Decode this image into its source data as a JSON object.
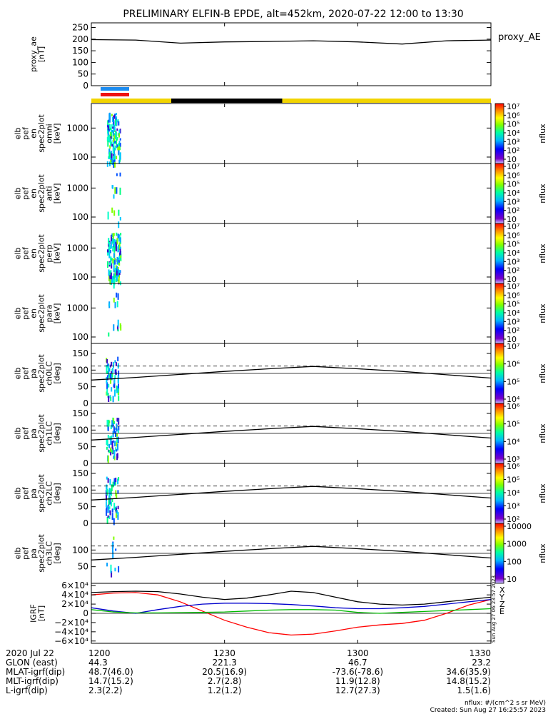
{
  "title": "PRELIMINARY ELFIN-B EPDE, alt=452km, 2020-07-22 12:00 to 13:30",
  "colors": {
    "day": "#f2d400",
    "night": "#000000",
    "bar_blue": "#1c8cf0",
    "bar_red": "#ee1111",
    "igrf_x": "#ff0000",
    "igrf_y": "#0000cc",
    "igrf_z": "#000000",
    "igrf_e": "#00bb00"
  },
  "chart_data": [
    {
      "id": "proxy_ae",
      "type": "line",
      "ylabel": "proxy_ae\n[nT]",
      "yticks": [
        0,
        50,
        100,
        150,
        200,
        250
      ],
      "ylim": [
        0,
        270
      ],
      "legend": "proxy_AE",
      "x_min": [
        0,
        10,
        20,
        30,
        40,
        50,
        60,
        70,
        80,
        90
      ],
      "y": [
        198,
        196,
        183,
        188,
        190,
        193,
        188,
        179,
        193,
        196
      ]
    },
    {
      "id": "en_omni",
      "type": "heatmap",
      "ylabel": "elb\npef\nen\nspec2plot\nomni\n[keV]",
      "yscale": "log",
      "ylim": [
        60,
        7000
      ],
      "yticks": [
        100,
        1000
      ],
      "colorbar": {
        "label": "nflux",
        "ticks": [
          "10",
          "10²",
          "10³",
          "10⁴",
          "10⁵",
          "10⁶",
          "10⁷"
        ]
      }
    },
    {
      "id": "en_anti",
      "type": "heatmap",
      "ylabel": "elb\npef\nen\nspec2plot\nanti\n[keV]",
      "yscale": "log",
      "ylim": [
        60,
        7000
      ],
      "yticks": [
        100,
        1000
      ],
      "colorbar": {
        "label": "nflux",
        "ticks": [
          "10",
          "10²",
          "10³",
          "10⁴",
          "10⁵",
          "10⁶",
          "10⁷"
        ]
      }
    },
    {
      "id": "en_perp",
      "type": "heatmap",
      "ylabel": "elb\npef\nen\nspec2plot\nperp\n[keV]",
      "yscale": "log",
      "ylim": [
        60,
        7000
      ],
      "yticks": [
        100,
        1000
      ],
      "colorbar": {
        "label": "nflux",
        "ticks": [
          "10",
          "10²",
          "10³",
          "10⁴",
          "10⁵",
          "10⁶",
          "10⁷"
        ]
      }
    },
    {
      "id": "en_para",
      "type": "heatmap",
      "ylabel": "elb\npef\nen\nspec2plot\npara\n[keV]",
      "yscale": "log",
      "ylim": [
        60,
        7000
      ],
      "yticks": [
        100,
        1000
      ],
      "colorbar": {
        "label": "nflux",
        "ticks": [
          "10",
          "10²",
          "10³",
          "10⁴",
          "10⁵",
          "10⁶",
          "10⁷"
        ]
      }
    },
    {
      "id": "pa_ch0",
      "type": "heatmap",
      "ylabel": "elb\npef\npa\nspec2plot\nch0LC\n[deg]",
      "ylim": [
        0,
        180
      ],
      "yticks": [
        0,
        50,
        100,
        150
      ],
      "colorbar": {
        "label": "nflux",
        "ticks": [
          "10⁴",
          "10⁵",
          "10⁶",
          "10⁷"
        ]
      }
    },
    {
      "id": "pa_ch1",
      "type": "heatmap",
      "ylabel": "elb\npef\npa\nspec2plot\nch1LC\n[deg]",
      "ylim": [
        0,
        180
      ],
      "yticks": [
        0,
        50,
        100,
        150
      ],
      "colorbar": {
        "label": "nflux",
        "ticks": [
          "10³",
          "10⁴",
          "10⁵",
          "10⁶"
        ]
      }
    },
    {
      "id": "pa_ch2",
      "type": "heatmap",
      "ylabel": "elb\npef\npa\nspec2plot\nch2LC\n[deg]",
      "ylim": [
        0,
        180
      ],
      "yticks": [
        0,
        50,
        100,
        150
      ],
      "colorbar": {
        "label": "nflux",
        "ticks": [
          "10²",
          "10³",
          "10⁴",
          "10⁵",
          "10⁶"
        ]
      }
    },
    {
      "id": "pa_ch3",
      "type": "heatmap",
      "ylabel": "elb\npef\npa\nspec2plot\nch3LC\n[deg]",
      "ylim": [
        0,
        180
      ],
      "yticks": [
        50,
        100
      ],
      "colorbar": {
        "label": "nflux",
        "ticks": [
          "10",
          "100",
          "1000",
          "10000"
        ]
      }
    },
    {
      "id": "igrf",
      "type": "line",
      "ylabel": "IGRF\n[nT]",
      "ylim": [
        -65000,
        65000
      ],
      "yticks": [
        -60000,
        -40000,
        -20000,
        0,
        20000,
        40000,
        60000
      ],
      "ytick_labels": [
        "−6×10⁴",
        "−4×10⁴",
        "−2×10⁴",
        "0",
        "2×10⁴",
        "4×10⁴",
        "6×10⁴"
      ],
      "legend": [
        "X",
        "Y",
        "Z",
        "E"
      ],
      "x_min": [
        0,
        5,
        10,
        15,
        20,
        25,
        30,
        35,
        40,
        45,
        50,
        55,
        60,
        65,
        70,
        75,
        80,
        85,
        90
      ],
      "series": [
        {
          "name": "X",
          "values": [
            40000,
            44000,
            45000,
            40000,
            25000,
            5000,
            -15000,
            -30000,
            -42000,
            -47000,
            -45000,
            -38000,
            -30000,
            -25000,
            -22000,
            -15000,
            0,
            18000,
            30000
          ]
        },
        {
          "name": "Y",
          "values": [
            12000,
            5000,
            0,
            8000,
            15000,
            20000,
            22000,
            22000,
            21000,
            19000,
            16000,
            12000,
            10000,
            10000,
            12000,
            15000,
            20000,
            25000,
            30000
          ]
        },
        {
          "name": "Z",
          "values": [
            45000,
            47000,
            48000,
            47000,
            42000,
            35000,
            30000,
            33000,
            40000,
            48000,
            45000,
            35000,
            25000,
            20000,
            18000,
            20000,
            25000,
            30000,
            35000
          ]
        },
        {
          "name": "E",
          "values": [
            8000,
            3000,
            1000,
            1000,
            1500,
            2000,
            3000,
            5000,
            7000,
            8000,
            8000,
            7000,
            2000,
            0,
            2000,
            4000,
            6000,
            8000,
            10000
          ]
        }
      ]
    }
  ],
  "footer_labels": [
    "2020 Jul 22",
    "GLON (east)",
    "MLAT-igrf(dip)",
    "MLT-igrf(dip)",
    "L-igrf(dip)"
  ],
  "footer_columns": [
    {
      "time": "1200",
      "values": [
        "44.3",
        "48.7(46.0)",
        "14.7(15.2)",
        "2.3(2.2)"
      ]
    },
    {
      "time": "1230",
      "values": [
        "221.3",
        "20.5(16.9)",
        "2.7(2.8)",
        "1.2(1.2)"
      ]
    },
    {
      "time": "1300",
      "values": [
        "46.7",
        "-73.6(-78.6)",
        "11.9(12.8)",
        "12.7(27.3)"
      ]
    },
    {
      "time": "1330",
      "values": [
        "23.2",
        "34.6(35.9)",
        "14.8(15.2)",
        "1.5(1.6)"
      ]
    }
  ],
  "footer_note": "nflux: #/(cm^2 s sr MeV)",
  "created": "Created: Sun Aug 27 16:25:57 2023",
  "side_stamp": "Sun Aug 27 06:23:57 2023"
}
